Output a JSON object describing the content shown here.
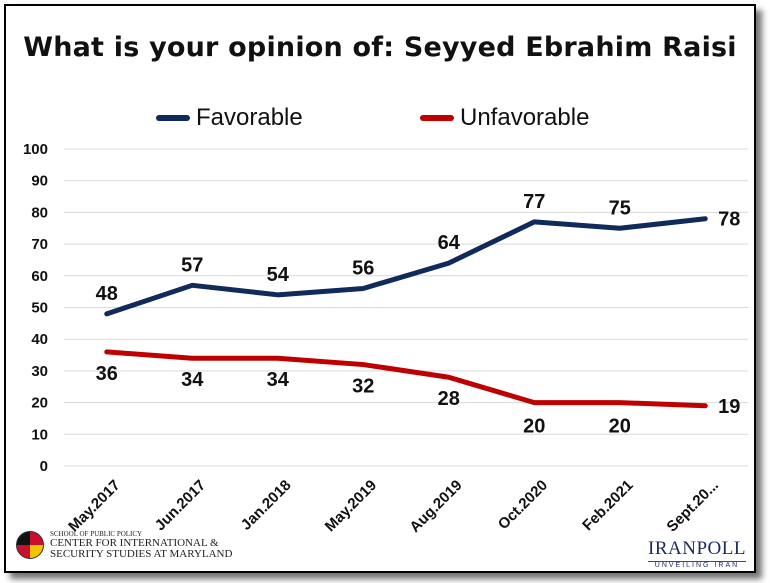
{
  "chart_data": {
    "type": "line",
    "title": "What is your opinion of: Seyyed Ebrahim Raisi",
    "categories": [
      "May.2017",
      "Jun.2017",
      "Jan.2018",
      "May.2019",
      "Aug.2019",
      "Oct.2020",
      "Feb.2021",
      "Sept.20..."
    ],
    "series": [
      {
        "name": "Favorable",
        "color": "#102a5c",
        "values": [
          48,
          57,
          54,
          56,
          64,
          77,
          75,
          78
        ]
      },
      {
        "name": "Unfavorable",
        "color": "#c00000",
        "values": [
          36,
          34,
          34,
          32,
          28,
          20,
          20,
          19
        ]
      }
    ],
    "ylim": [
      0,
      100
    ],
    "yticks": [
      0,
      10,
      20,
      30,
      40,
      50,
      60,
      70,
      80,
      90,
      100
    ],
    "grid": true,
    "legend": "top-center",
    "data_labels": true
  },
  "logos": {
    "left": {
      "line1": "SCHOOL OF PUBLIC POLICY",
      "line2": "CENTER FOR INTERNATIONAL &",
      "line3": "SECURITY STUDIES AT MARYLAND"
    },
    "right": {
      "name": "IRANPOLL",
      "tagline": "UNVEILING IRAN"
    }
  }
}
